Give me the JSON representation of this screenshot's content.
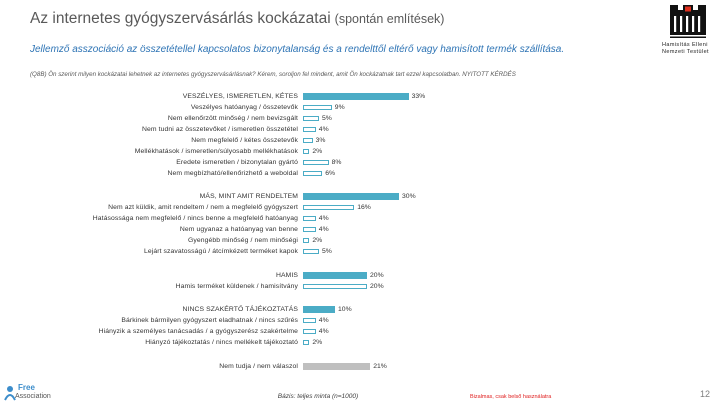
{
  "slide": {
    "title": "Az internetes gyógyszervásárlás kockázatai",
    "title_note": "(spontán említések)",
    "subtitle": "Jellemző asszociáció az összetétellel kapcsolatos bizonytalanság és a rendelttől eltérő vagy hamisított termék szállítása.",
    "question": "(Q8B) Ön szerint milyen kockázatai lehetnek az internetes gyógyszervásárlásnak? Kérem, soroljon fel mindent, amit Ön kockázatnak tart ezzel kapcsolatban. NYITOTT KÉRDÉS",
    "base": "Bázis: teljes minta (n=1000)",
    "notice": "Bizalmas, csak belső használatra",
    "page_number": "12"
  },
  "logos": {
    "top_right": {
      "line1": "Hamisítás Elleni",
      "line2": "Nemzeti Testület",
      "icon": "hent-emblem-icon"
    },
    "bottom_left": {
      "line1": "Free",
      "line2": "Association",
      "icon": "agency-logo-icon"
    }
  },
  "colors": {
    "title": "#595959",
    "subtitle": "#2E74B5",
    "notice": "#E02020"
  },
  "chart_data": {
    "type": "bar",
    "orientation": "horizontal",
    "unit": "%",
    "groups": [
      {
        "label": "VESZÉLYES, ISMERETLEN, KÉTES",
        "value": 33,
        "color": "#4BACC6",
        "items": [
          {
            "label": "Veszélyes hatóanyag / összetevők",
            "value": 9
          },
          {
            "label": "Nem ellenőrzött minőség / nem bevizsgált",
            "value": 5
          },
          {
            "label": "Nem tudni az összetevőket / ismeretlen összetétel",
            "value": 4
          },
          {
            "label": "Nem megfelelő / kétes összetevők",
            "value": 3
          },
          {
            "label": "Mellékhatások / ismeretlen/súlyosabb mellékhatások",
            "value": 2
          },
          {
            "label": "Eredete ismeretlen / bizonytalan gyártó",
            "value": 8
          },
          {
            "label": "Nem megbízható/ellenőrizhető a weboldal",
            "value": 6
          }
        ]
      },
      {
        "label": "MÁS, MINT AMIT RENDELTEM",
        "value": 30,
        "color": "#4BACC6",
        "items": [
          {
            "label": "Nem azt küldik, amit rendeltem / nem a megfelelő gyógyszert",
            "value": 16
          },
          {
            "label": "Hatásossága nem megfelelő / nincs benne a megfelelő hatóanyag",
            "value": 4
          },
          {
            "label": "Nem ugyanaz a hatóanyag van benne",
            "value": 4
          },
          {
            "label": "Gyengébb minőség / nem minőségi",
            "value": 2
          },
          {
            "label": "Lejárt szavatosságú / átcímkézett terméket kapok",
            "value": 5
          }
        ]
      },
      {
        "label": "HAMIS",
        "value": 20,
        "color": "#4BACC6",
        "items": [
          {
            "label": "Hamis terméket küldenek / hamisítvány",
            "value": 20
          }
        ]
      },
      {
        "label": "NINCS SZAKÉRTŐ TÁJÉKOZTATÁS",
        "value": 10,
        "color": "#4BACC6",
        "items": [
          {
            "label": "Bárkinek bármilyen gyógyszert eladhatnak / nincs szűrés",
            "value": 4
          },
          {
            "label": "Hiányzik a személyes tanácsadás / a gyógyszerész szakértelme",
            "value": 4
          },
          {
            "label": "Hiányzó tájékoztatás / nincs mellékelt tájékoztató",
            "value": 2
          }
        ]
      },
      {
        "label": "Nem tudja / nem válaszol",
        "value": 21,
        "color": "#BFBFBF",
        "items": []
      }
    ]
  }
}
